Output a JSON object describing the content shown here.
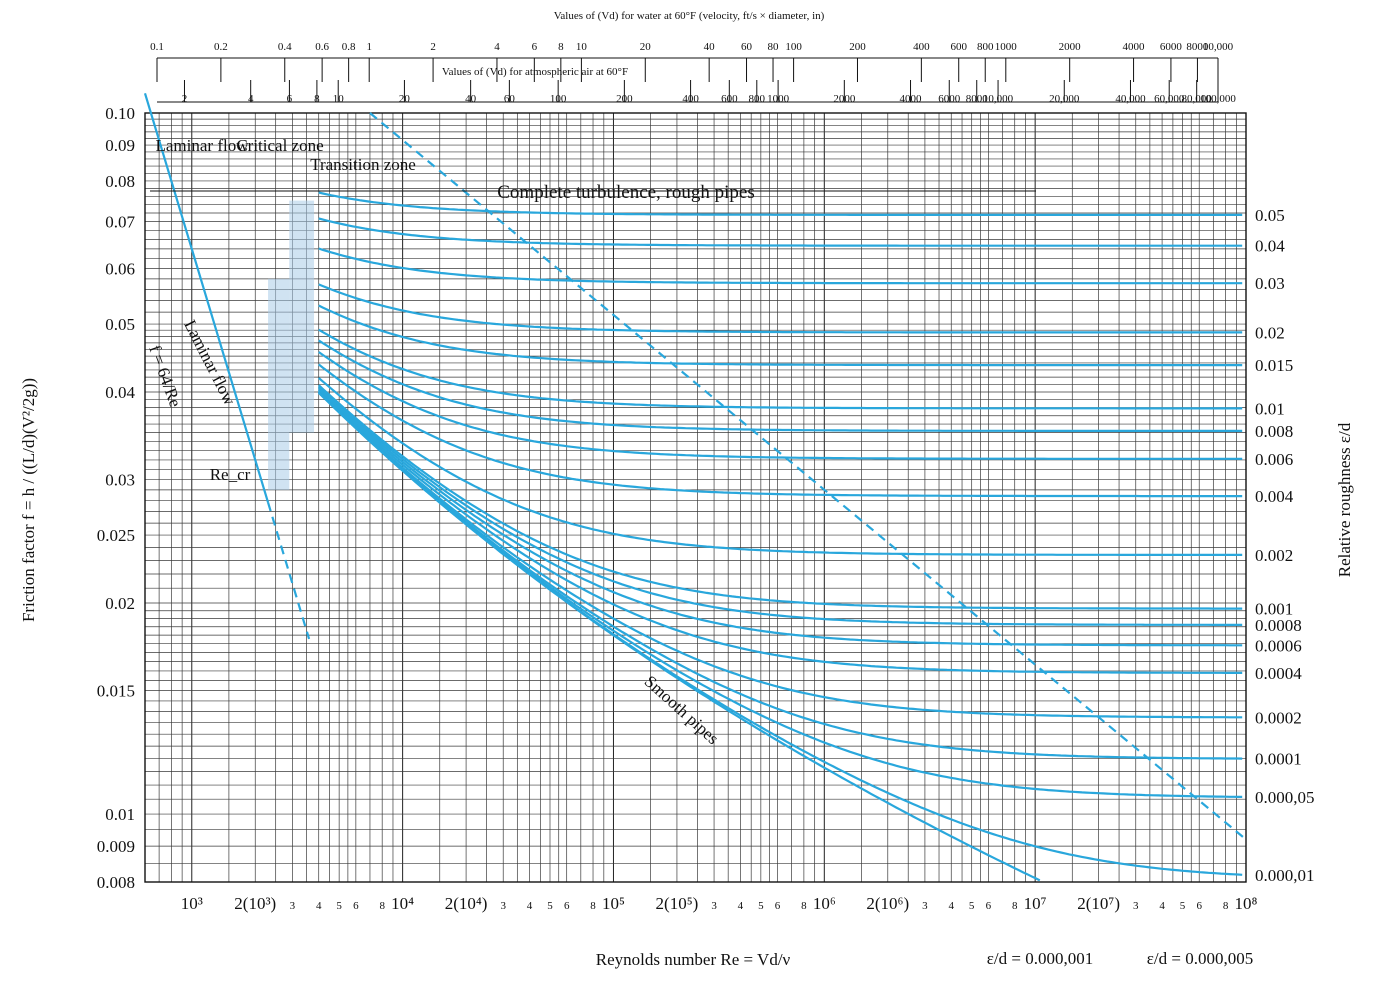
{
  "chart_data": {
    "type": "line",
    "title": "",
    "top_axis_title": "Values of (Vd) for water at 60°F (velocity, ft/s × diameter, in)",
    "top_axis_ticks": [
      "0.1",
      "0.2",
      "0.4",
      "0.6",
      "0.8",
      "1",
      "2",
      "4",
      "6",
      "8",
      "10",
      "20",
      "40",
      "60",
      "80",
      "100",
      "200",
      "400",
      "600",
      "800",
      "1000",
      "2000",
      "4000",
      "6000",
      "8000",
      "10,000"
    ],
    "air_axis_title": "Values of (Vd) for atmospheric air at 60°F",
    "air_axis_ticks": [
      "2",
      "4",
      "6",
      "8",
      "10",
      "20",
      "40",
      "60",
      "100",
      "200",
      "400",
      "600",
      "800",
      "1000",
      "2000",
      "4000",
      "6000",
      "8000",
      "10,000",
      "20,000",
      "40,000",
      "60,000",
      "80,000",
      "100,000"
    ],
    "ylabel": "Friction factor f = h / ((L/d)(V²/2g))",
    "xlabel": "Reynolds number Re = Vd/ν",
    "right_axis_label": "Relative roughness ε/d",
    "x_scale": "log",
    "y_scale": "log",
    "xlim": [
      600,
      100000000
    ],
    "ylim": [
      0.008,
      0.1
    ],
    "y_ticks": [
      "0.10",
      "0.09",
      "0.08",
      "0.07",
      "0.06",
      "0.05",
      "0.04",
      "0.03",
      "0.025",
      "0.02",
      "0.015",
      "0.01",
      "0.009",
      "0.008"
    ],
    "x_tick_labels": [
      {
        "re": 1000,
        "text": "10³"
      },
      {
        "re": 2000,
        "text": "2(10³)"
      },
      {
        "re": 3000,
        "text": "3"
      },
      {
        "re": 4000,
        "text": "4"
      },
      {
        "re": 5000,
        "text": "5"
      },
      {
        "re": 6000,
        "text": "6"
      },
      {
        "re": 8000,
        "text": "8"
      },
      {
        "re": 10000,
        "text": "10⁴"
      },
      {
        "re": 20000,
        "text": "2(10⁴)"
      },
      {
        "re": 30000,
        "text": "3"
      },
      {
        "re": 40000,
        "text": "4"
      },
      {
        "re": 50000,
        "text": "5"
      },
      {
        "re": 60000,
        "text": "6"
      },
      {
        "re": 80000,
        "text": "8"
      },
      {
        "re": 100000,
        "text": "10⁵"
      },
      {
        "re": 200000,
        "text": "2(10⁵)"
      },
      {
        "re": 300000,
        "text": "3"
      },
      {
        "re": 400000,
        "text": "4"
      },
      {
        "re": 500000,
        "text": "5"
      },
      {
        "re": 600000,
        "text": "6"
      },
      {
        "re": 800000,
        "text": "8"
      },
      {
        "re": 1000000,
        "text": "10⁶"
      },
      {
        "re": 2000000,
        "text": "2(10⁶)"
      },
      {
        "re": 3000000,
        "text": "3"
      },
      {
        "re": 4000000,
        "text": "4"
      },
      {
        "re": 5000000,
        "text": "5"
      },
      {
        "re": 6000000,
        "text": "6"
      },
      {
        "re": 8000000,
        "text": "8"
      },
      {
        "re": 10000000,
        "text": "10⁷"
      },
      {
        "re": 20000000,
        "text": "2(10⁷)"
      },
      {
        "re": 30000000,
        "text": "3"
      },
      {
        "re": 40000000,
        "text": "4"
      },
      {
        "re": 50000000,
        "text": "5"
      },
      {
        "re": 60000000,
        "text": "6"
      },
      {
        "re": 80000000,
        "text": "8"
      },
      {
        "re": 100000000,
        "text": "10⁸"
      }
    ],
    "series": [
      {
        "name": "0.05",
        "eps": 0.05
      },
      {
        "name": "0.04",
        "eps": 0.04
      },
      {
        "name": "0.03",
        "eps": 0.03
      },
      {
        "name": "0.02",
        "eps": 0.02
      },
      {
        "name": "0.015",
        "eps": 0.015
      },
      {
        "name": "0.01",
        "eps": 0.01
      },
      {
        "name": "0.008",
        "eps": 0.008
      },
      {
        "name": "0.006",
        "eps": 0.006
      },
      {
        "name": "0.004",
        "eps": 0.004
      },
      {
        "name": "0.002",
        "eps": 0.002
      },
      {
        "name": "0.001",
        "eps": 0.001
      },
      {
        "name": "0.0008",
        "eps": 0.0008
      },
      {
        "name": "0.0006",
        "eps": 0.0006
      },
      {
        "name": "0.0004",
        "eps": 0.0004
      },
      {
        "name": "0.0002",
        "eps": 0.0002
      },
      {
        "name": "0.0001",
        "eps": 0.0001
      },
      {
        "name": "0.000,05",
        "eps": 5e-05
      },
      {
        "name": "0.000,01",
        "eps": 1e-05
      },
      {
        "name": "Smooth pipes",
        "eps": 0
      }
    ],
    "laminar": {
      "label": "Laminar flow",
      "equation": "f = 64/Re",
      "re_range": [
        600,
        2300
      ]
    },
    "laminar_extension": {
      "re_range": [
        2300,
        3600
      ]
    },
    "annotations": {
      "laminar_zone": "Laminar flow",
      "critical_zone": "Critical zone",
      "transition_zone": "Transition zone",
      "complete_turbulence": "Complete turbulence, rough pipes",
      "re_cr": "Re_cr",
      "smooth": "Smooth pipes",
      "eps_note_1": "ε/d = 0.000,001",
      "eps_note_2": "ε/d = 0.000,005"
    },
    "grid": true,
    "legend": "none"
  }
}
